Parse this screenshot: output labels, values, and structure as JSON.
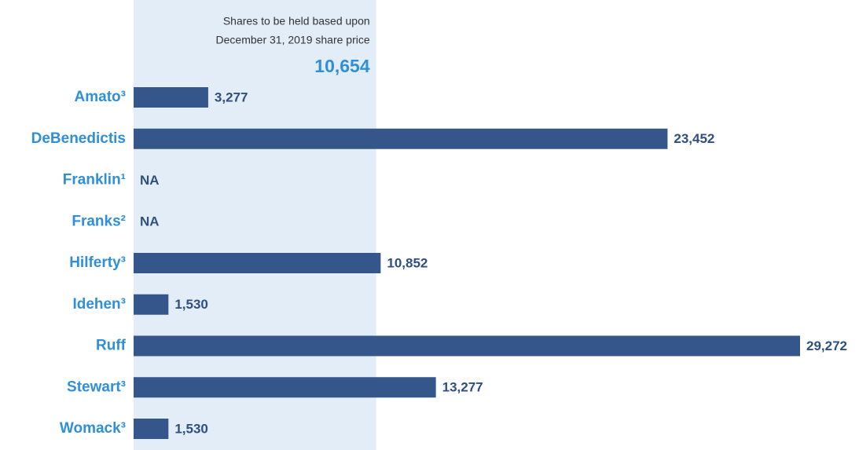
{
  "chart_data": {
    "type": "bar",
    "orientation": "horizontal",
    "categories": [
      "Amato³",
      "DeBenedictis",
      "Franklin¹",
      "Franks²",
      "Hilferty³",
      "Idehen³",
      "Ruff",
      "Stewart³",
      "Womack³"
    ],
    "values": [
      3277,
      23452,
      null,
      null,
      10852,
      1530,
      29272,
      13277,
      1530
    ],
    "value_labels": [
      "3,277",
      "23,452",
      "NA",
      "NA",
      "10,852",
      "1,530",
      "29,272",
      "13,277",
      "1,530"
    ],
    "color": "#34568b",
    "annotation": [
      "Shares to be held based upon",
      "December 31, 2019 share price"
    ],
    "threshold": 10654,
    "threshold_label": "10,654",
    "threshold_color": "#e3edf8"
  }
}
